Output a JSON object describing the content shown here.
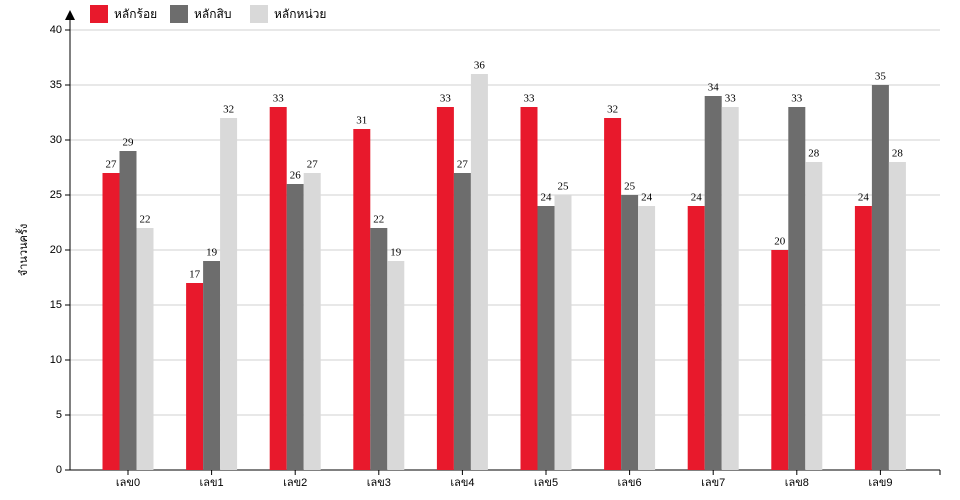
{
  "chart_data": {
    "type": "bar",
    "y_label": "จำนวนครั้ง",
    "categories": [
      "เลข0",
      "เลข1",
      "เลข2",
      "เลข3",
      "เลข4",
      "เลข5",
      "เลข6",
      "เลข7",
      "เลข8",
      "เลข9"
    ],
    "series": [
      {
        "name": "หลักร้อย",
        "color": "#e8192c",
        "values": [
          27,
          17,
          33,
          31,
          33,
          33,
          32,
          24,
          20,
          24
        ]
      },
      {
        "name": "หลักสิบ",
        "color": "#6d6d6d",
        "values": [
          29,
          19,
          26,
          22,
          27,
          24,
          25,
          34,
          33,
          35
        ]
      },
      {
        "name": "หลักหน่วย",
        "color": "#d9d9d9",
        "values": [
          22,
          32,
          27,
          19,
          36,
          25,
          24,
          33,
          28,
          28
        ]
      }
    ],
    "ylim": [
      0,
      40
    ],
    "yticks": [
      0,
      5,
      10,
      15,
      20,
      25,
      30,
      35,
      40
    ],
    "grid": true
  }
}
